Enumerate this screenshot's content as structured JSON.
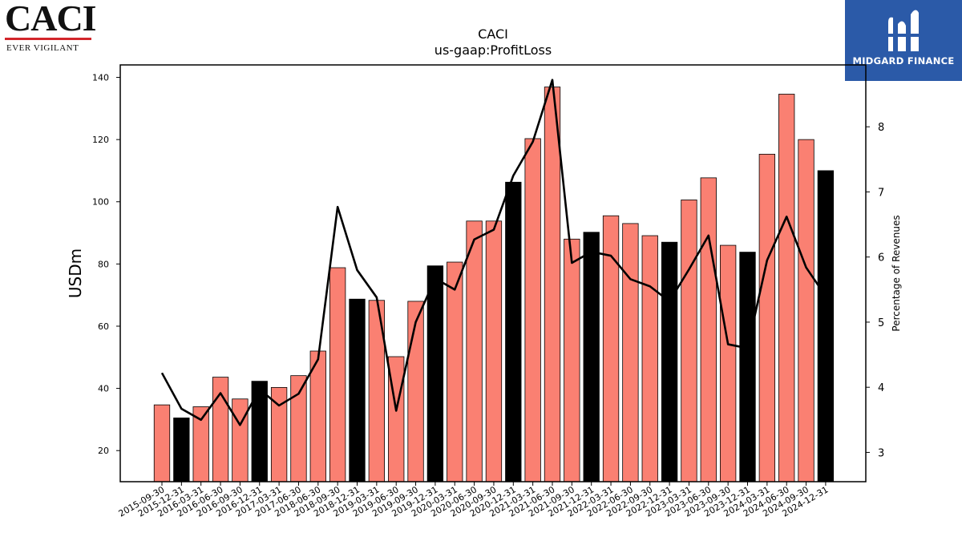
{
  "logos": {
    "caci_name": "CACI",
    "caci_tagline": "EVER VIGILANT",
    "caci_accent": "#d2262b",
    "midgard_name": "MIDGARD FINANCE",
    "midgard_bg": "#2b5aa8"
  },
  "chart_data": {
    "type": "bar",
    "title": "CACI",
    "subtitle": "us-gaap:ProfitLoss",
    "ylabel": "USDm",
    "y2label": "Percentage of Revenues",
    "ylim": [
      10,
      144
    ],
    "y2lim": [
      2.55,
      8.95
    ],
    "yticks": [
      20,
      40,
      60,
      80,
      100,
      120,
      140
    ],
    "y2ticks": [
      3,
      4,
      5,
      6,
      7,
      8
    ],
    "bar_colors": {
      "quarter": "#fa8072",
      "year_end": "#000000"
    },
    "line_color": "#000000",
    "categories": [
      "2015-09-30",
      "2015-12-31",
      "2016-03-31",
      "2016-06-30",
      "2016-09-30",
      "2016-12-31",
      "2017-03-31",
      "2017-06-30",
      "2018-06-30",
      "2018-09-30",
      "2018-12-31",
      "2019-03-31",
      "2019-06-30",
      "2019-09-30",
      "2019-12-31",
      "2020-03-31",
      "2020-06-30",
      "2020-09-30",
      "2020-12-31",
      "2021-03-31",
      "2021-06-30",
      "2021-09-30",
      "2021-12-31",
      "2022-03-31",
      "2022-06-30",
      "2022-09-30",
      "2022-12-31",
      "2023-03-31",
      "2023-06-30",
      "2023-09-30",
      "2023-12-31",
      "2024-03-31",
      "2024-06-30",
      "2024-09-30",
      "2024-12-31"
    ],
    "series": [
      {
        "type": "bar",
        "values": [
          34.7,
          30.5,
          34.1,
          43.6,
          36.6,
          42.3,
          40.3,
          44.1,
          52.0,
          78.8,
          68.7,
          68.3,
          50.2,
          68.0,
          79.4,
          80.6,
          93.8,
          93.8,
          106.3,
          120.3,
          136.9,
          88.0,
          90.2,
          95.5,
          93.0,
          89.1,
          87.0,
          100.6,
          107.7,
          86.0,
          83.8,
          115.3,
          134.6,
          120.0,
          110.0
        ],
        "year_end": [
          false,
          true,
          false,
          false,
          false,
          true,
          false,
          false,
          false,
          false,
          true,
          false,
          false,
          false,
          true,
          false,
          false,
          false,
          true,
          false,
          false,
          false,
          true,
          false,
          false,
          false,
          true,
          false,
          false,
          false,
          true,
          false,
          false,
          false,
          true
        ]
      },
      {
        "type": "line",
        "axis": "right",
        "values": [
          4.22,
          3.67,
          3.5,
          3.91,
          3.42,
          3.97,
          3.72,
          3.9,
          4.43,
          6.77,
          5.8,
          5.38,
          3.64,
          5.0,
          5.67,
          5.5,
          6.27,
          6.42,
          7.25,
          7.77,
          8.72,
          5.91,
          6.08,
          6.02,
          5.66,
          5.55,
          5.32,
          5.81,
          6.33,
          4.66,
          4.6,
          5.95,
          6.62,
          5.84,
          5.4
        ]
      }
    ],
    "grid": false,
    "legend": "none"
  }
}
